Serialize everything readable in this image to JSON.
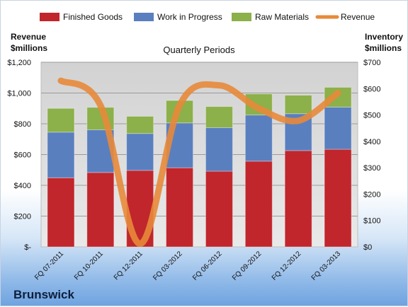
{
  "company": "Brunswick",
  "chart_data": {
    "type": "bar",
    "title": "Quarterly Periods",
    "left_axis_label": [
      "Revenue",
      "$millions"
    ],
    "right_axis_label": [
      "Inventory",
      "$millions"
    ],
    "categories": [
      "FQ 07-2011",
      "FQ 10-2011",
      "FQ 12-2011",
      "FQ 03-2012",
      "FQ 06-2012",
      "FQ 09-2012",
      "FQ 12-2012",
      "FQ 03-2013"
    ],
    "left_ticks": [
      "$-",
      "$200",
      "$400",
      "$600",
      "$800",
      "$1,000",
      "$1,200"
    ],
    "right_ticks": [
      "$0",
      "$100",
      "$200",
      "$300",
      "$400",
      "$500",
      "$600",
      "$700"
    ],
    "left_ylim": [
      0,
      1200
    ],
    "right_ylim": [
      0,
      700
    ],
    "legend_position": "top",
    "grid": true,
    "series": [
      {
        "name": "Finished Goods",
        "axis": "right",
        "color": "#c0262c",
        "values": [
          262,
          282,
          290,
          300,
          287,
          325,
          365,
          370
        ]
      },
      {
        "name": "Work in Progress",
        "axis": "right",
        "color": "#5a7fbf",
        "values": [
          173,
          162,
          140,
          170,
          165,
          175,
          140,
          160
        ]
      },
      {
        "name": "Raw Materials",
        "axis": "right",
        "color": "#8cb04a",
        "values": [
          90,
          85,
          65,
          85,
          80,
          80,
          70,
          75
        ]
      },
      {
        "name": "Revenue",
        "type": "line",
        "axis": "left",
        "color": "#e8893a",
        "values": [
          1080,
          920,
          20,
          920,
          1050,
          900,
          820,
          1000
        ]
      }
    ]
  }
}
